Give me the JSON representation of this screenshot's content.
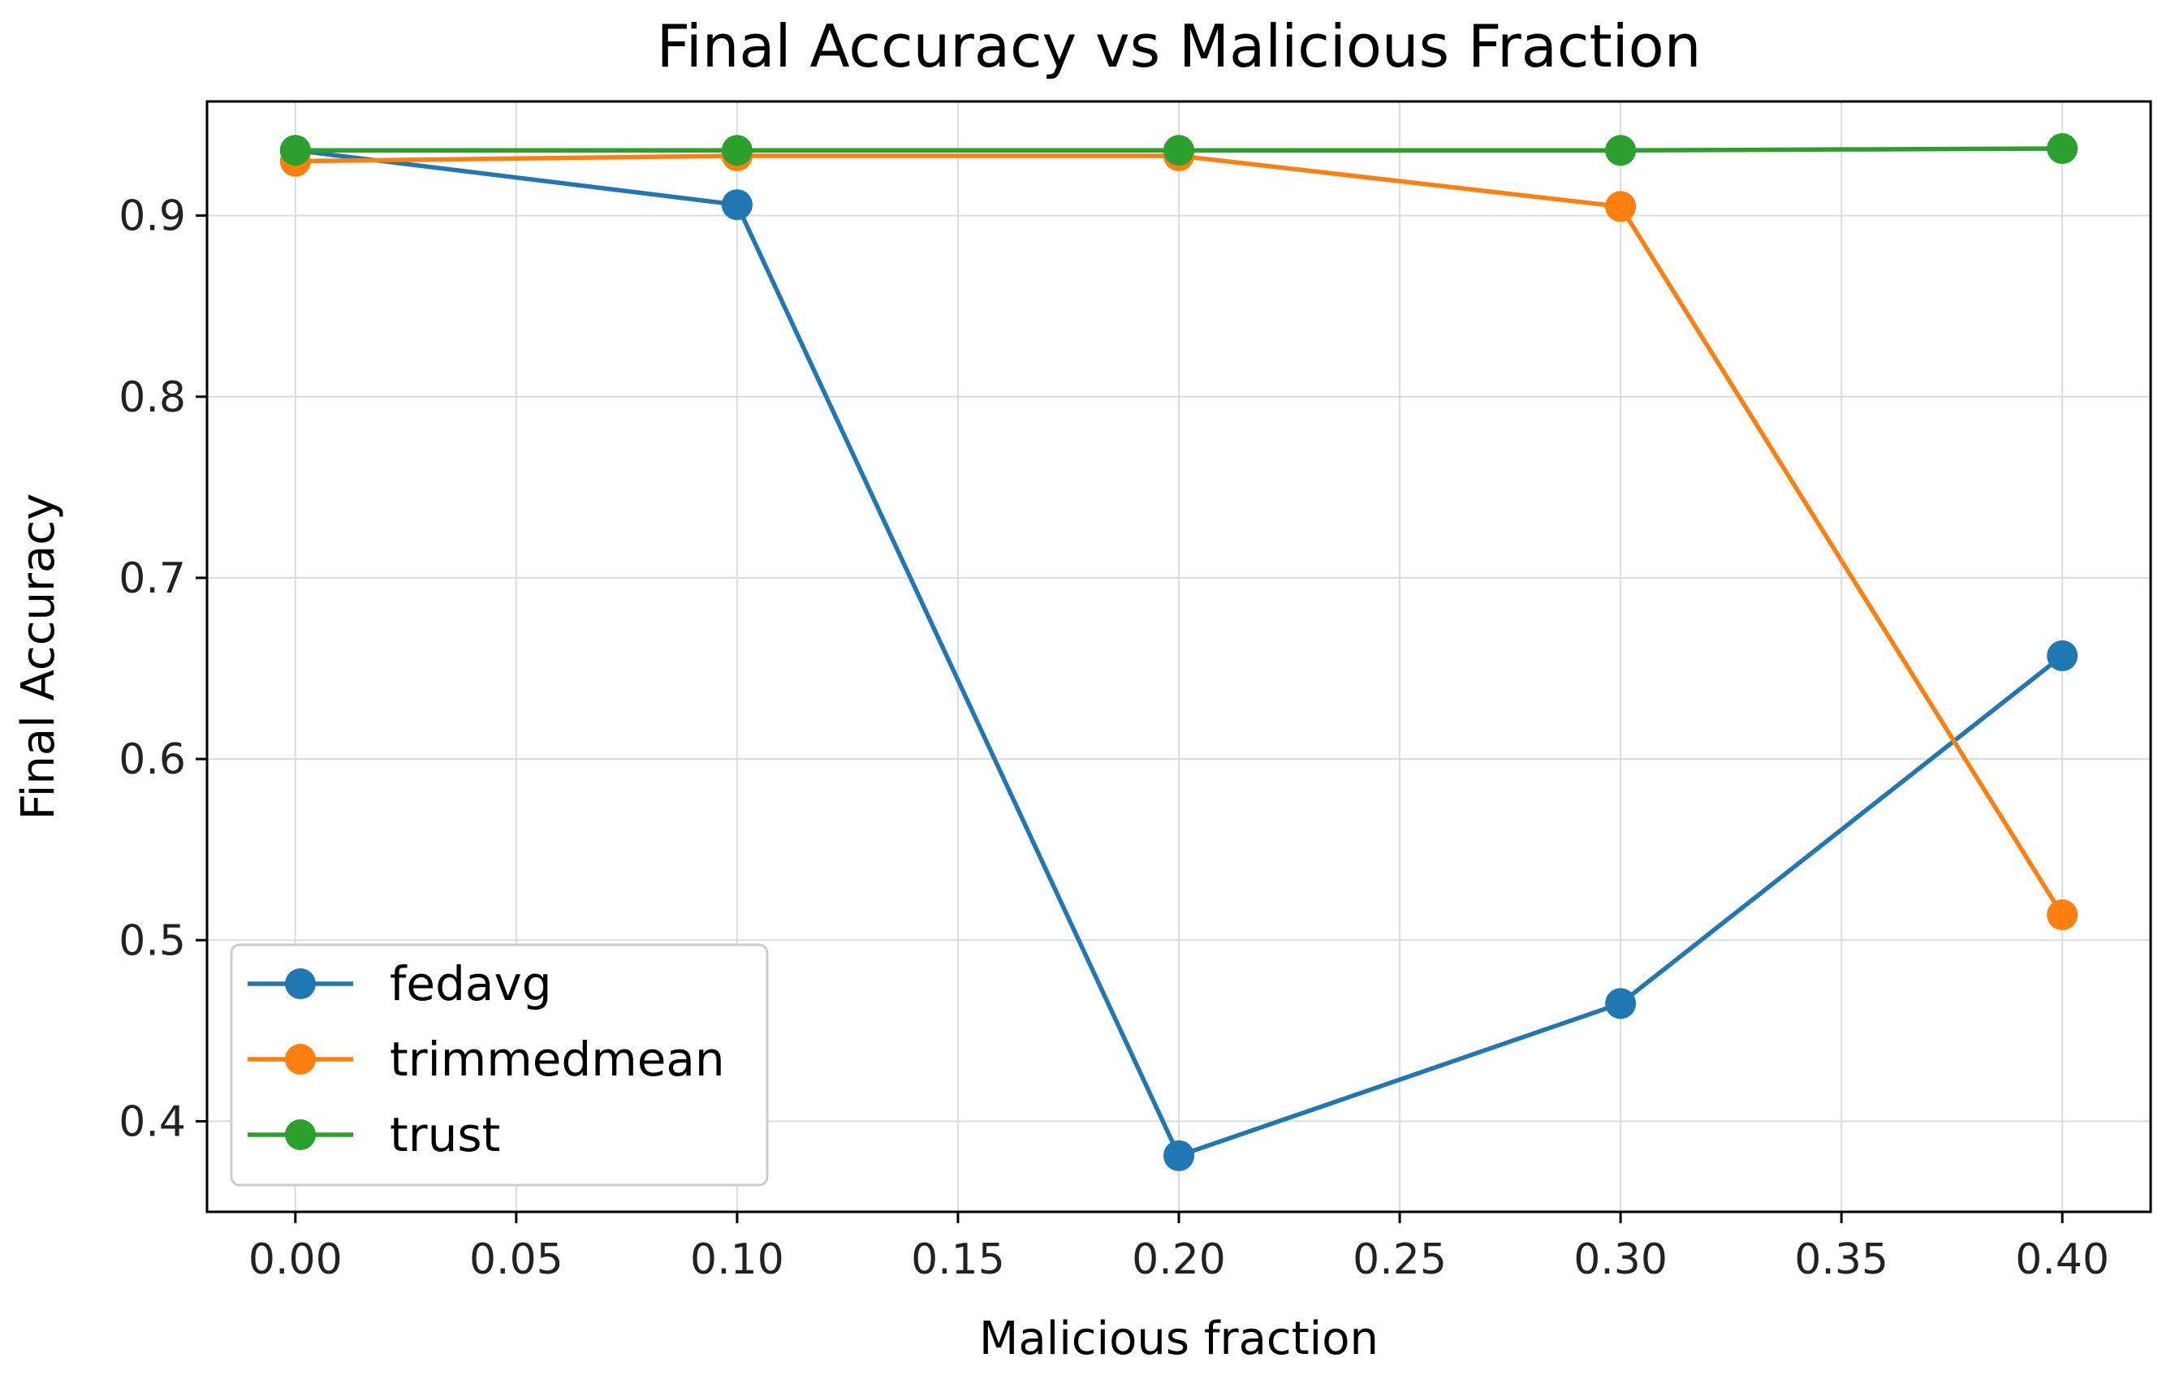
{
  "chart_data": {
    "type": "line",
    "title": "Final Accuracy vs Malicious Fraction",
    "xlabel": "Malicious fraction",
    "ylabel": "Final Accuracy",
    "x": [
      0.0,
      0.1,
      0.2,
      0.3,
      0.4
    ],
    "xlim": [
      -0.02,
      0.42
    ],
    "ylim": [
      0.35,
      0.963
    ],
    "x_ticks": [
      0.0,
      0.05,
      0.1,
      0.15,
      0.2,
      0.25,
      0.3,
      0.35,
      0.4
    ],
    "x_tick_labels": [
      "0.00",
      "0.05",
      "0.10",
      "0.15",
      "0.20",
      "0.25",
      "0.30",
      "0.35",
      "0.40"
    ],
    "y_ticks": [
      0.4,
      0.5,
      0.6,
      0.7,
      0.8,
      0.9
    ],
    "y_tick_labels": [
      "0.4",
      "0.5",
      "0.6",
      "0.7",
      "0.8",
      "0.9"
    ],
    "grid": true,
    "legend_position": "lower-left",
    "series": [
      {
        "name": "fedavg",
        "color": "#1f77b4",
        "values": [
          0.936,
          0.906,
          0.381,
          0.465,
          0.657
        ]
      },
      {
        "name": "trimmedmean",
        "color": "#ff7f0e",
        "values": [
          0.93,
          0.933,
          0.933,
          0.905,
          0.514
        ]
      },
      {
        "name": "trust",
        "color": "#2ca02c",
        "values": [
          0.936,
          0.936,
          0.936,
          0.936,
          0.937
        ]
      }
    ]
  }
}
